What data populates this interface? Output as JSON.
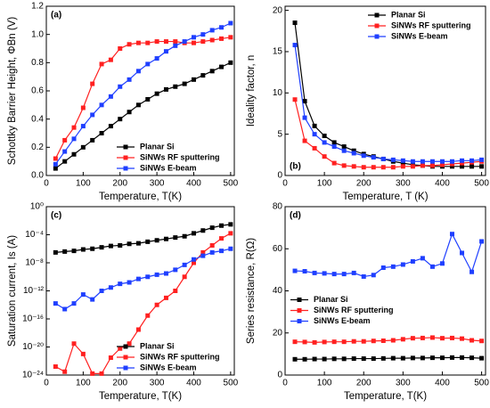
{
  "chart_data": [
    {
      "type": "line",
      "annotation": "(a)",
      "annotation_corner": "upper left",
      "xlabel": "Temperature, T(K)",
      "ylabel": "Schottky Barrier Height, ΦBn (V)",
      "x": [
        25,
        50,
        75,
        100,
        125,
        150,
        175,
        200,
        225,
        250,
        275,
        300,
        325,
        350,
        375,
        400,
        425,
        450,
        475,
        500
      ],
      "xlim": [
        0,
        510
      ],
      "xticks": [
        0,
        100,
        200,
        300,
        400,
        500
      ],
      "ylim": [
        0,
        1.2
      ],
      "yticks": [
        {
          "value": 0,
          "label": "0.0"
        },
        0.2,
        0.4,
        0.6,
        0.8,
        {
          "value": 1,
          "label": "1.0"
        },
        1.2
      ],
      "log_y": false,
      "legend": "lower right",
      "series": [
        {
          "name": "Planar Si",
          "color": "#000000",
          "values": [
            0.05,
            0.1,
            0.15,
            0.2,
            0.25,
            0.3,
            0.35,
            0.4,
            0.45,
            0.5,
            0.54,
            0.58,
            0.61,
            0.63,
            0.65,
            0.68,
            0.71,
            0.74,
            0.77,
            0.8
          ]
        },
        {
          "name": "SiNWs RF sputtering",
          "color": "#ff2020",
          "values": [
            0.12,
            0.25,
            0.34,
            0.48,
            0.65,
            0.79,
            0.82,
            0.9,
            0.93,
            0.94,
            0.94,
            0.95,
            0.95,
            0.95,
            0.94,
            0.94,
            0.95,
            0.96,
            0.97,
            0.98
          ]
        },
        {
          "name": "SiNWs E-beam",
          "color": "#1f3fff",
          "values": [
            0.08,
            0.17,
            0.26,
            0.35,
            0.43,
            0.5,
            0.56,
            0.63,
            0.68,
            0.74,
            0.79,
            0.83,
            0.88,
            0.92,
            0.95,
            0.98,
            1.0,
            1.03,
            1.05,
            1.08
          ]
        }
      ]
    },
    {
      "type": "line",
      "annotation": "(b)",
      "annotation_corner": "lower left",
      "xlabel": "Temperature, T (K)",
      "ylabel": "Ideality factor, n",
      "x": [
        25,
        50,
        75,
        100,
        125,
        150,
        175,
        200,
        225,
        250,
        275,
        300,
        325,
        350,
        375,
        400,
        425,
        450,
        475,
        500
      ],
      "xlim": [
        0,
        510
      ],
      "xticks": [
        0,
        100,
        200,
        300,
        400,
        500
      ],
      "ylim": [
        0,
        20.5
      ],
      "yticks": [
        0,
        5,
        10,
        15,
        20
      ],
      "log_y": false,
      "legend": "upper right",
      "series": [
        {
          "name": "Planar Si",
          "color": "#000000",
          "values": [
            18.5,
            9,
            6,
            4.8,
            4,
            3.5,
            3,
            2.6,
            2.3,
            2.0,
            1.7,
            1.5,
            1.3,
            1.2,
            1.1,
            1.1,
            1.1,
            1.1,
            1.1,
            1.1
          ]
        },
        {
          "name": "SiNWs RF sputtering",
          "color": "#ff2020",
          "values": [
            9.2,
            4.2,
            3.3,
            2.3,
            1.5,
            1.2,
            1.1,
            1.0,
            1.0,
            1.0,
            1.0,
            1.1,
            1.1,
            1.2,
            1.2,
            1.3,
            1.4,
            1.5,
            1.6,
            1.7
          ]
        },
        {
          "name": "SiNWs E-beam",
          "color": "#1f3fff",
          "values": [
            15.8,
            7,
            5,
            4,
            3.5,
            3,
            2.7,
            2.4,
            2.2,
            2.0,
            1.9,
            1.8,
            1.7,
            1.7,
            1.7,
            1.7,
            1.7,
            1.8,
            1.8,
            1.9
          ]
        }
      ]
    },
    {
      "type": "line",
      "annotation": "(c)",
      "annotation_corner": "upper left",
      "xlabel": "Temperature, T(K)",
      "ylabel": "Saturation current, Is (A)",
      "x": [
        25,
        50,
        75,
        100,
        125,
        150,
        175,
        200,
        225,
        250,
        275,
        300,
        325,
        350,
        375,
        400,
        425,
        450,
        475,
        500
      ],
      "xlim": [
        0,
        510
      ],
      "xticks": [
        0,
        100,
        200,
        300,
        400,
        500
      ],
      "ylim": [
        1e-24,
        1
      ],
      "yticks": [
        {
          "value": 1e-24,
          "label": "10⁻²⁴"
        },
        {
          "value": 1e-20,
          "label": "10⁻²⁰"
        },
        {
          "value": 1e-16,
          "label": "10⁻¹⁶"
        },
        {
          "value": 1e-12,
          "label": "10⁻¹²"
        },
        {
          "value": 1e-08,
          "label": "10⁻⁸"
        },
        {
          "value": 0.0001,
          "label": "10⁻⁴"
        },
        {
          "value": 1,
          "label": "10⁰"
        }
      ],
      "log_y": true,
      "legend": "lower right",
      "series": [
        {
          "name": "Planar Si",
          "color": "#000000",
          "values": [
            3e-07,
            4e-07,
            5e-07,
            8e-07,
            1e-06,
            1.6e-06,
            2.5e-06,
            3e-06,
            5e-06,
            6e-06,
            1e-05,
            1.6e-05,
            2.5e-05,
            4e-05,
            6e-05,
            0.00016,
            0.0004,
            0.001,
            0.002,
            0.003
          ]
        },
        {
          "name": "SiNWs RF sputtering",
          "color": "#ff2020",
          "values": [
            1.6e-23,
            3e-24,
            3e-20,
            1e-21,
            1.6e-24,
            1.6e-24,
            3e-22,
            6e-21,
            3e-20,
            3e-18,
            3e-16,
            1e-14,
            1e-13,
            1e-12,
            1e-10,
            1e-08,
            3e-07,
            3e-06,
            3e-05,
            0.00016
          ]
        },
        {
          "name": "SiNWs E-beam",
          "color": "#1f3fff",
          "values": [
            1.6e-14,
            2.5e-15,
            1.6e-14,
            3e-13,
            6e-14,
            1e-12,
            3e-12,
            1e-11,
            1.6e-11,
            5e-11,
            1e-10,
            2e-10,
            3e-10,
            1e-09,
            5e-09,
            3e-08,
            1e-07,
            3e-07,
            5e-07,
            1e-06
          ]
        }
      ]
    },
    {
      "type": "line",
      "annotation": "(d)",
      "annotation_corner": "upper left",
      "xlabel": "Temperature, T(K)",
      "ylabel": "Series resistance, R(Ω)",
      "x": [
        25,
        50,
        75,
        100,
        125,
        150,
        175,
        200,
        225,
        250,
        275,
        300,
        325,
        350,
        375,
        400,
        425,
        450,
        475,
        500
      ],
      "xlim": [
        0,
        510
      ],
      "xticks": [
        0,
        100,
        200,
        300,
        400,
        500
      ],
      "ylim": [
        0,
        80
      ],
      "yticks": [
        0,
        20,
        40,
        60,
        80
      ],
      "log_y": false,
      "legend": "center left",
      "series": [
        {
          "name": "Planar Si",
          "color": "#000000",
          "values": [
            7.5,
            7.5,
            7.6,
            7.6,
            7.7,
            7.7,
            7.8,
            7.8,
            7.8,
            7.9,
            8,
            8,
            8.1,
            8.1,
            8.2,
            8.2,
            8.3,
            8.3,
            8.2,
            8
          ]
        },
        {
          "name": "SiNWs RF sputtering",
          "color": "#ff2020",
          "values": [
            15.8,
            15.7,
            15.5,
            15.7,
            15.8,
            15.8,
            16,
            16,
            16.2,
            16.3,
            16.5,
            17,
            17.5,
            17.6,
            17.8,
            17.5,
            17.6,
            17.3,
            16.5,
            16.2
          ]
        },
        {
          "name": "SiNWs E-beam",
          "color": "#1f3fff",
          "values": [
            49.5,
            49.3,
            48.5,
            48.3,
            48,
            48,
            48.5,
            46.8,
            47.5,
            51,
            51.5,
            52.5,
            54,
            55.5,
            51.5,
            53,
            67,
            58,
            49,
            63.5
          ]
        }
      ]
    }
  ]
}
